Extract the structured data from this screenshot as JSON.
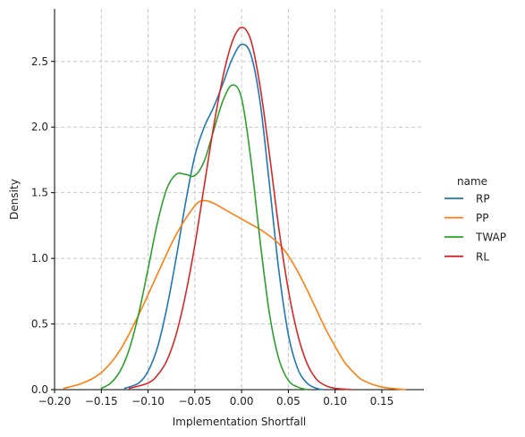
{
  "chart_data": {
    "type": "line",
    "title": "",
    "xlabel": "Implementation Shortfall",
    "ylabel": "Density",
    "xlim": [
      -0.2,
      0.195
    ],
    "ylim": [
      0,
      2.9
    ],
    "xticks": [
      -0.2,
      -0.15,
      -0.1,
      -0.05,
      0.0,
      0.05,
      0.1,
      0.15
    ],
    "xtick_labels": [
      "−0.20",
      "−0.15",
      "−0.10",
      "−0.05",
      "0.00",
      "0.05",
      "0.10",
      "0.15"
    ],
    "yticks": [
      0.0,
      0.5,
      1.0,
      1.5,
      2.0,
      2.5
    ],
    "ytick_labels": [
      "0.0",
      "0.5",
      "1.0",
      "1.5",
      "2.0",
      "2.5"
    ],
    "grid": true,
    "legend": {
      "title": "name",
      "placement": "right"
    },
    "series": [
      {
        "name": "RP",
        "color": "#1f77b4",
        "x": [
          -0.125,
          -0.11,
          -0.1,
          -0.09,
          -0.08,
          -0.07,
          -0.06,
          -0.05,
          -0.04,
          -0.03,
          -0.02,
          -0.01,
          0.0,
          0.01,
          0.02,
          0.03,
          0.04,
          0.05,
          0.06,
          0.07,
          0.08,
          0.087
        ],
        "y": [
          0.01,
          0.05,
          0.14,
          0.32,
          0.62,
          1.0,
          1.42,
          1.78,
          2.0,
          2.15,
          2.33,
          2.52,
          2.63,
          2.55,
          2.18,
          1.55,
          0.9,
          0.42,
          0.16,
          0.05,
          0.01,
          0.0
        ]
      },
      {
        "name": "PP",
        "color": "#ff7f0e",
        "x": [
          -0.19,
          -0.17,
          -0.15,
          -0.13,
          -0.11,
          -0.09,
          -0.07,
          -0.05,
          -0.04,
          -0.03,
          -0.02,
          -0.01,
          0.0,
          0.01,
          0.02,
          0.03,
          0.04,
          0.05,
          0.06,
          0.07,
          0.08,
          0.09,
          0.1,
          0.11,
          0.12,
          0.13,
          0.15,
          0.175
        ],
        "y": [
          0.01,
          0.05,
          0.13,
          0.3,
          0.57,
          0.88,
          1.18,
          1.4,
          1.44,
          1.42,
          1.38,
          1.34,
          1.3,
          1.26,
          1.22,
          1.17,
          1.11,
          1.02,
          0.9,
          0.76,
          0.61,
          0.46,
          0.33,
          0.21,
          0.13,
          0.07,
          0.02,
          0.0
        ]
      },
      {
        "name": "TWAP",
        "color": "#2ca02c",
        "x": [
          -0.15,
          -0.14,
          -0.13,
          -0.12,
          -0.11,
          -0.1,
          -0.09,
          -0.08,
          -0.07,
          -0.06,
          -0.05,
          -0.04,
          -0.03,
          -0.02,
          -0.01,
          0.0,
          0.01,
          0.02,
          0.03,
          0.04,
          0.05,
          0.06,
          0.07
        ],
        "y": [
          0.01,
          0.05,
          0.14,
          0.31,
          0.58,
          0.92,
          1.27,
          1.53,
          1.64,
          1.64,
          1.63,
          1.74,
          1.97,
          2.2,
          2.32,
          2.22,
          1.75,
          1.12,
          0.57,
          0.23,
          0.07,
          0.02,
          0.0
        ]
      },
      {
        "name": "RL",
        "color": "#d62728",
        "x": [
          -0.12,
          -0.1,
          -0.09,
          -0.08,
          -0.07,
          -0.06,
          -0.05,
          -0.04,
          -0.03,
          -0.02,
          -0.01,
          0.0,
          0.01,
          0.02,
          0.03,
          0.04,
          0.05,
          0.06,
          0.07,
          0.08,
          0.09,
          0.1,
          0.118
        ],
        "y": [
          0.01,
          0.05,
          0.11,
          0.22,
          0.42,
          0.72,
          1.1,
          1.55,
          2.0,
          2.38,
          2.65,
          2.76,
          2.66,
          2.3,
          1.78,
          1.22,
          0.76,
          0.42,
          0.2,
          0.08,
          0.03,
          0.01,
          0.0
        ]
      }
    ]
  }
}
